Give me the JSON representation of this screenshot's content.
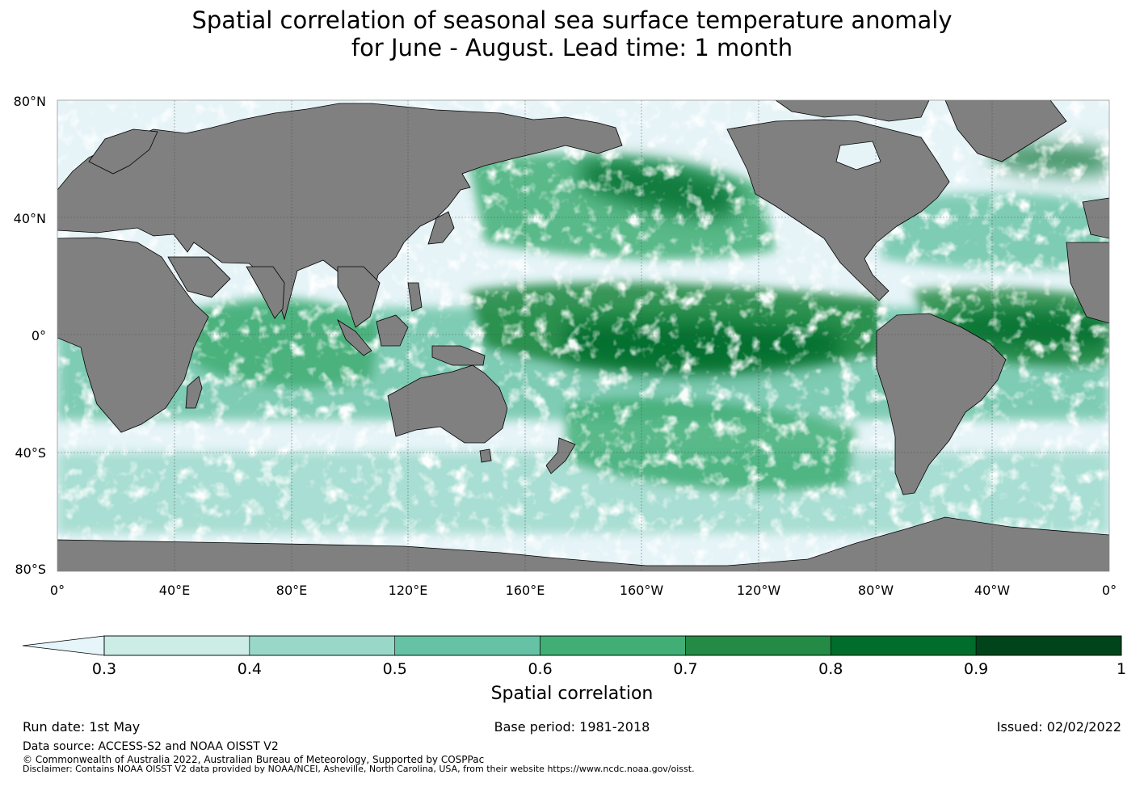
{
  "title": {
    "line1": "Spatial correlation of seasonal sea surface temperature anomaly",
    "line2": "for June - August. Lead time: 1 month"
  },
  "map": {
    "lat_labels": [
      "80°N",
      "40°N",
      "0°",
      "40°S",
      "80°S"
    ],
    "lon_labels": [
      "0°",
      "40°E",
      "80°E",
      "120°E",
      "160°E",
      "160°W",
      "120°W",
      "80°W",
      "40°W",
      "0°"
    ],
    "land_color": "#808080",
    "low_correlation_ocean_color": "#e6f4f8"
  },
  "colorbar": {
    "label": "Spatial correlation",
    "ticks": [
      "0.3",
      "0.4",
      "0.5",
      "0.6",
      "0.7",
      "0.8",
      "0.9",
      "1"
    ],
    "colors": [
      "#e6f5f9",
      "#ccece6",
      "#99d8c9",
      "#66c2a4",
      "#41ae76",
      "#238b45",
      "#006d2c",
      "#00441b"
    ],
    "bins": [
      {
        "from": 0.3,
        "to": 0.4
      },
      {
        "from": 0.4,
        "to": 0.5
      },
      {
        "from": 0.5,
        "to": 0.6
      },
      {
        "from": 0.6,
        "to": 0.7
      },
      {
        "from": 0.7,
        "to": 0.8
      },
      {
        "from": 0.8,
        "to": 0.9
      },
      {
        "from": 0.9,
        "to": 1.0
      }
    ]
  },
  "footer": {
    "run_date": "Run date: 1st May",
    "base_period": "Base period: 1981-2018",
    "issued": "Issued: 02/02/2022",
    "data_source": "Data source: ACCESS-S2 and NOAA OISST V2",
    "copyright": "© Commonwealth of Australia 2022, Australian Bureau of Meteorology, Supported by COSPPac",
    "disclaimer": "Disclaimer: Contains NOAA OISST V2 data provided by NOAA/NCEI, Asheville, North Carolina, USA, from their website https://www.ncdc.noaa.gov/oisst."
  }
}
